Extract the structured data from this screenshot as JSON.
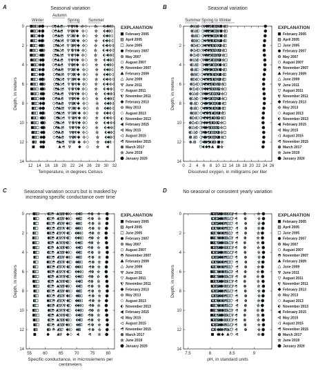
{
  "legend": {
    "title": "EXPLANATION",
    "entries": [
      {
        "label": "February 2005",
        "marker": "square",
        "fill": "#111111"
      },
      {
        "label": "April 2005",
        "marker": "square",
        "fill": "#999999"
      },
      {
        "label": "June 2005",
        "marker": "square",
        "fill": "#ffffff"
      },
      {
        "label": "February 2007",
        "marker": "circle",
        "fill": "#111111"
      },
      {
        "label": "May 2007",
        "marker": "circle",
        "fill": "#999999"
      },
      {
        "label": "August 2007",
        "marker": "circle",
        "fill": "#ffffff"
      },
      {
        "label": "November 2007",
        "marker": "circle-half",
        "fill": "#111111"
      },
      {
        "label": "February 2009",
        "marker": "triangle",
        "fill": "#111111"
      },
      {
        "label": "June 2009",
        "marker": "triangle",
        "fill": "#ffffff"
      },
      {
        "label": "June 2011",
        "marker": "tri-down",
        "fill": "#999999"
      },
      {
        "label": "August 2011",
        "marker": "tri-down",
        "fill": "#ffffff"
      },
      {
        "label": "November 2011",
        "marker": "tri-down-half",
        "fill": "#111111"
      },
      {
        "label": "February 2013",
        "marker": "diamond",
        "fill": "#111111"
      },
      {
        "label": "May 2013",
        "marker": "diamond",
        "fill": "#999999"
      },
      {
        "label": "August 2013",
        "marker": "diamond",
        "fill": "#ffffff"
      },
      {
        "label": "November 2013",
        "marker": "diamond-half",
        "fill": "#111111"
      },
      {
        "label": "February 2015",
        "marker": "tri-left",
        "fill": "#111111"
      },
      {
        "label": "May 2015",
        "marker": "tri-left",
        "fill": "#999999"
      },
      {
        "label": "August 2015",
        "marker": "tri-left",
        "fill": "#ffffff"
      },
      {
        "label": "November 2015",
        "marker": "tri-left-half",
        "fill": "#111111"
      },
      {
        "label": "March 2017",
        "marker": "circle",
        "fill": "#555555"
      },
      {
        "label": "June 2019",
        "marker": "star",
        "fill": "#999999"
      },
      {
        "label": "January 2020",
        "marker": "circle-big",
        "fill": "#111111"
      }
    ]
  },
  "colors": {
    "line": "#a8d6ea",
    "axis": "#222222",
    "marker_stroke": "#222222"
  },
  "chart_data": [
    {
      "panel": "A",
      "type": "scatter",
      "title": "Seasonal variation",
      "season_labels": [
        "Winter",
        "Autumn",
        "Spring",
        "Summer"
      ],
      "xlabel": "Temperature, in degrees Celsius",
      "ylabel": "Depth, in meters",
      "xlim": [
        11,
        32
      ],
      "ylim": [
        0,
        14
      ],
      "y_inverted": true,
      "xticks": [
        12,
        14,
        16,
        18,
        20,
        22,
        24,
        26,
        28,
        30,
        32
      ],
      "yticks": [
        0,
        2,
        4,
        6,
        8,
        10,
        12,
        14
      ],
      "profile_values": [
        12.2,
        12.8,
        13.4,
        14.2,
        15.0,
        17.5,
        18.0,
        18.6,
        19.2,
        21.0,
        21.8,
        22.6,
        23.2,
        24.5,
        25.2,
        29.5,
        30.2,
        30.8,
        31.4,
        19.5,
        22.0,
        27.5,
        14.8
      ],
      "max_depths": [
        12.5,
        12.0,
        11.5,
        12.5,
        12.0,
        11.5,
        12.0,
        12.5,
        12.0,
        12.5,
        12.0,
        11.5,
        12.5,
        12.0,
        12.5,
        12.0,
        12.5,
        12.0,
        11.5,
        12.5,
        12.0,
        12.5,
        12.5
      ],
      "trend": 0.35
    },
    {
      "panel": "B",
      "type": "scatter",
      "title": "Seasonal variation",
      "season_labels": [
        "Summer",
        "Spring to Winter"
      ],
      "xlabel": "Dissolved oxygen, in milligrams per liter",
      "ylabel": "Depth, in meters",
      "xlim": [
        0,
        26
      ],
      "ylim": [
        0,
        14
      ],
      "y_inverted": true,
      "xticks": [
        0,
        2,
        4,
        6,
        8,
        10,
        12,
        14,
        16,
        18,
        20,
        22,
        24,
        26
      ],
      "yticks": [
        0,
        2,
        4,
        6,
        8,
        10,
        12,
        14
      ],
      "profile_values": [
        11.0,
        9.5,
        12.5,
        8.5,
        10.0,
        4.5,
        7.0,
        9.0,
        3.5,
        6.0,
        8.0,
        10.5,
        7.5,
        9.5,
        5.5,
        8.8,
        6.5,
        4.0,
        3.0,
        7.8,
        2.5,
        12.0,
        24.0
      ],
      "max_depths": [
        12.5,
        12.0,
        11.5,
        12.5,
        12.0,
        11.5,
        12.0,
        12.5,
        12.0,
        12.5,
        12.0,
        11.5,
        12.5,
        12.0,
        12.5,
        12.0,
        12.5,
        12.0,
        11.5,
        12.5,
        12.0,
        12.5,
        12.5
      ],
      "trend": -0.55
    },
    {
      "panel": "C",
      "type": "scatter",
      "title": "Seasonal variation occurs but is masked by increasing specific conductance over time",
      "xlabel": "Specific conductance, in microsiemens per centimeters",
      "ylabel": "Depth, in meters",
      "xlim": [
        54,
        82
      ],
      "ylim": [
        0,
        14
      ],
      "y_inverted": true,
      "xticks": [
        55,
        60,
        65,
        70,
        75,
        80
      ],
      "yticks": [
        0,
        2,
        4,
        6,
        8,
        10,
        12,
        14
      ],
      "profile_values": [
        56.5,
        57.0,
        57.5,
        61.0,
        61.5,
        62.0,
        62.5,
        64.0,
        64.5,
        65.0,
        65.5,
        66.0,
        67.0,
        67.5,
        68.0,
        70.0,
        70.5,
        71.0,
        71.5,
        74.0,
        75.0,
        77.0,
        79.5
      ],
      "max_depths": [
        12.5,
        12.0,
        11.5,
        12.5,
        12.0,
        11.5,
        12.0,
        12.5,
        12.0,
        12.5,
        12.0,
        11.5,
        12.5,
        12.0,
        12.5,
        12.0,
        12.5,
        12.0,
        11.5,
        12.5,
        12.0,
        12.5,
        12.5
      ],
      "trend": 0.05
    },
    {
      "panel": "D",
      "type": "scatter",
      "title": "No seasonal or consistent yearly variation",
      "xlabel": "pH, in standard units",
      "ylabel": "Depth, in meters",
      "xlim": [
        7.4,
        9.4
      ],
      "ylim": [
        0,
        14
      ],
      "y_inverted": true,
      "xticks": [
        7.5,
        8.0,
        8.5,
        9.0
      ],
      "yticks": [
        0,
        2,
        4,
        6,
        8,
        10,
        12,
        14
      ],
      "profile_values": [
        8.05,
        8.1,
        8.15,
        8.2,
        8.25,
        8.3,
        8.35,
        8.4,
        8.45,
        8.5,
        8.08,
        8.18,
        8.28,
        8.38,
        8.48,
        8.12,
        8.22,
        8.32,
        8.42,
        8.6,
        8.8,
        9.1,
        9.2
      ],
      "max_depths": [
        12.5,
        12.0,
        11.5,
        12.5,
        12.0,
        11.5,
        12.0,
        12.5,
        12.0,
        12.5,
        12.0,
        11.5,
        12.5,
        12.0,
        12.5,
        12.0,
        12.5,
        12.0,
        11.5,
        12.5,
        12.0,
        12.5,
        12.5
      ],
      "trend": -0.02
    }
  ]
}
